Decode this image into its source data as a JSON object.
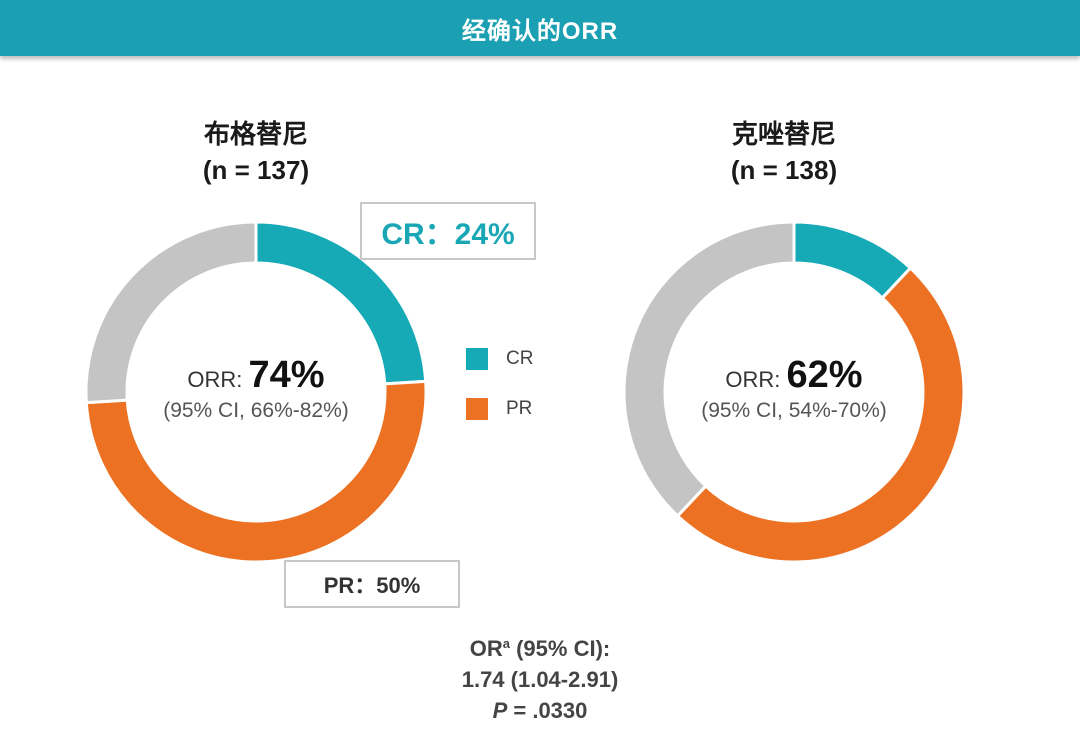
{
  "header": {
    "title": "经确认的ORR"
  },
  "colors": {
    "cr": "#16a9b6",
    "pr": "#ec7123",
    "rest": "#c4c4c4",
    "header_bg": "#1b9fb2"
  },
  "groups": [
    {
      "name": "布格替尼",
      "n_label": "(n = 137)",
      "orr_prefix": "ORR: ",
      "orr_value": "74%",
      "ci": "(95% CI, 66%-82%)"
    },
    {
      "name": "克唑替尼",
      "n_label": "(n = 138)",
      "orr_prefix": "ORR: ",
      "orr_value": "62%",
      "ci": "(95% CI, 54%-70%)"
    }
  ],
  "callouts": {
    "cr": "CR：24%",
    "pr": "PR：50%"
  },
  "legend": [
    {
      "label": "CR",
      "color": "#16a9b6"
    },
    {
      "label": "PR",
      "color": "#ec7123"
    }
  ],
  "stats": {
    "or_label": "OR",
    "or_sup": "a",
    "or_ci_label": " (95% CI):",
    "or_value": "1.74 (1.04-2.91)",
    "p_label": "P",
    "p_value": " = .0330"
  },
  "chart_data": [
    {
      "type": "pie",
      "title": "布格替尼",
      "categories": [
        "CR",
        "PR",
        "Other"
      ],
      "values": [
        24,
        50,
        26
      ]
    },
    {
      "type": "pie",
      "title": "克唑替尼",
      "categories": [
        "CR",
        "PR",
        "Other"
      ],
      "values": [
        12,
        50,
        38
      ]
    }
  ]
}
